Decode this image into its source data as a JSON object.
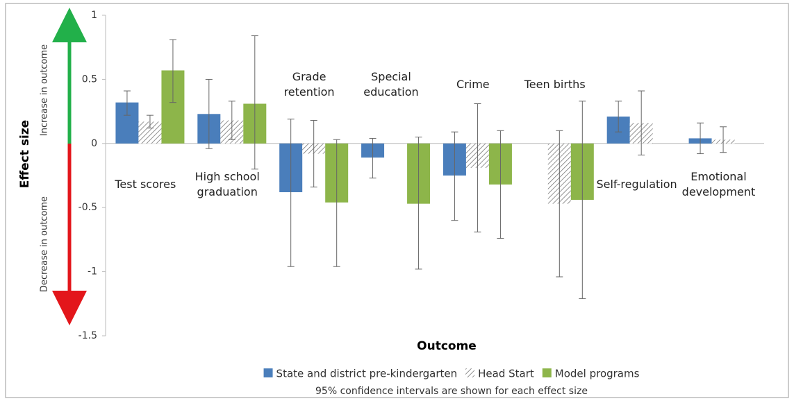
{
  "chart_data": {
    "type": "bar",
    "ylabel": "Effect size",
    "xlabel": "Outcome",
    "annotations": [
      "Increase in outcome",
      "Decrease in outcome"
    ],
    "note": "95% confidence intervals are shown for each effect size",
    "categories": [
      "Test scores",
      "High school graduation",
      "Grade retention",
      "Special education",
      "Crime",
      "Teen births",
      "Self-regulation",
      "Emotional development"
    ],
    "category_label_position": [
      "below",
      "below",
      "above",
      "above",
      "above",
      "above",
      "below",
      "below"
    ],
    "ylim": [
      -1.5,
      1
    ],
    "yticks": [
      -1.5,
      -1,
      -0.5,
      0,
      0.5,
      1
    ],
    "series": [
      {
        "name": "State and district pre-kindergarten",
        "color": "#4a7ebb",
        "hatch": false,
        "values": [
          0.32,
          0.23,
          -0.38,
          -0.11,
          -0.25,
          null,
          0.21,
          0.04
        ],
        "ci_low": [
          0.22,
          -0.04,
          -0.96,
          -0.27,
          -0.6,
          null,
          0.09,
          -0.08
        ],
        "ci_high": [
          0.41,
          0.5,
          0.19,
          0.04,
          0.09,
          null,
          0.33,
          0.16
        ]
      },
      {
        "name": "Head Start",
        "color": "#777777",
        "hatch": true,
        "values": [
          0.17,
          0.18,
          -0.08,
          null,
          -0.19,
          -0.47,
          0.16,
          0.03
        ],
        "ci_low": [
          0.12,
          0.03,
          -0.34,
          null,
          -0.69,
          -1.04,
          -0.09,
          -0.07
        ],
        "ci_high": [
          0.22,
          0.33,
          0.18,
          null,
          0.31,
          0.1,
          0.41,
          0.13
        ]
      },
      {
        "name": "Model programs",
        "color": "#8db54a",
        "hatch": false,
        "values": [
          0.57,
          0.31,
          -0.46,
          -0.47,
          -0.32,
          -0.44,
          null,
          null
        ],
        "ci_low": [
          0.32,
          -0.2,
          -0.96,
          -0.98,
          -0.74,
          -1.21,
          null,
          null
        ],
        "ci_high": [
          0.81,
          0.84,
          0.03,
          0.05,
          0.1,
          0.33,
          null,
          null
        ]
      }
    ]
  }
}
